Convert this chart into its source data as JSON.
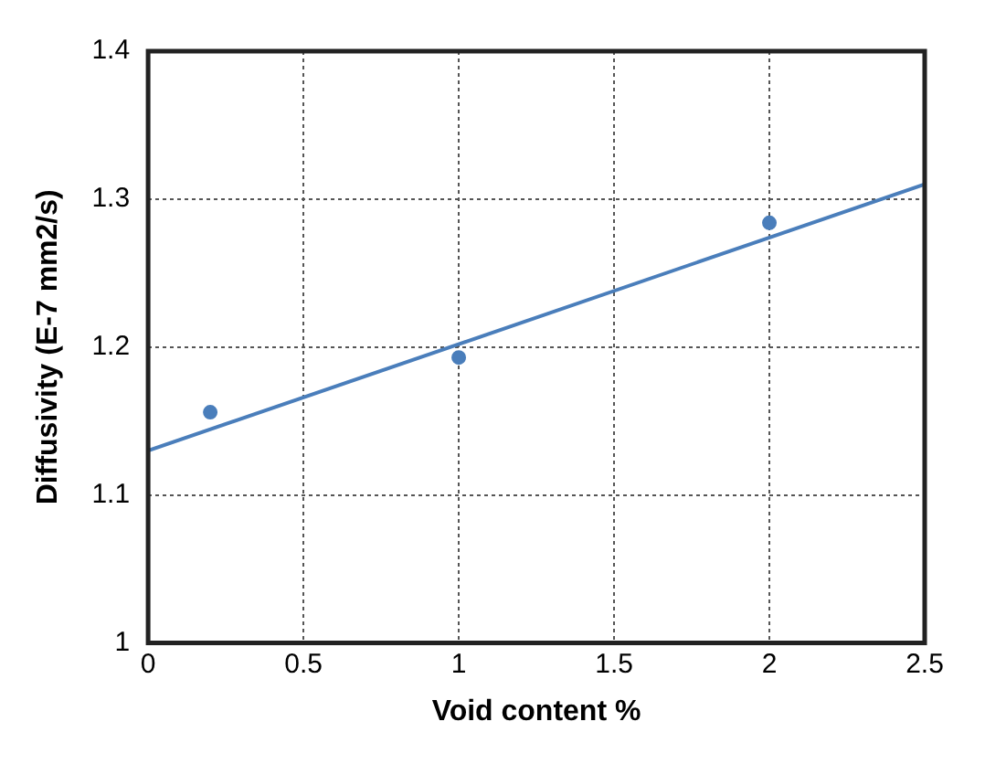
{
  "chart_data": {
    "type": "scatter",
    "xlabel": "Void content %",
    "ylabel": "Diffusivity (E-7 mm2/s)",
    "x": [
      0.2,
      1,
      2
    ],
    "series": [
      {
        "color": "#4a7ebb",
        "marker": "circle",
        "values": [
          1.156,
          1.193,
          1.284
        ]
      },
      {
        "type": "line",
        "color": "#4a7ebb",
        "marker": "none",
        "x": [
          0,
          2.5
        ],
        "values": [
          1.13,
          1.31
        ]
      }
    ],
    "xlim": [
      0,
      2.5
    ],
    "xticks": [
      0,
      0.5,
      1,
      1.5,
      2,
      2.5
    ],
    "ylim": [
      1,
      1.4
    ],
    "yticks": [
      1,
      1.1,
      1.2,
      1.3,
      1.4
    ],
    "grid": true,
    "legend": false
  }
}
